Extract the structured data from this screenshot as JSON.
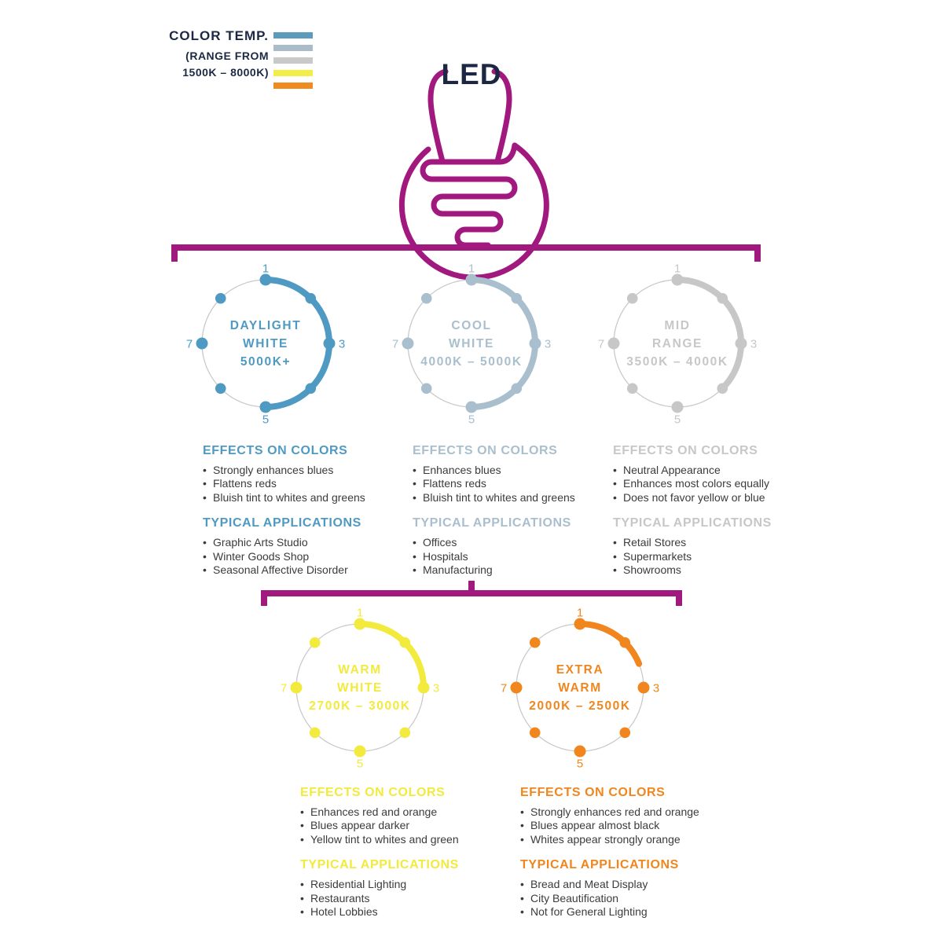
{
  "legend": {
    "title": "COLOR TEMP.",
    "subtitle1": "(RANGE FROM",
    "subtitle2": "1500K – 8000K)",
    "swatches": [
      {
        "name": "daylight-white",
        "color": "#5b9cbd"
      },
      {
        "name": "cool-white",
        "color": "#a9bcc7"
      },
      {
        "name": "mid-range",
        "color": "#c9c9c9"
      },
      {
        "name": "warm-white",
        "color": "#f2ee47"
      },
      {
        "name": "extra-warm",
        "color": "#ef8b20"
      }
    ]
  },
  "bulb": {
    "label": "LED",
    "outline_color": "#a1197e",
    "label_color": "#1c2843"
  },
  "dials": [
    {
      "name": "daylight-white",
      "label_lines": [
        "DAYLIGHT",
        "WHITE",
        "5000K+"
      ],
      "color": "#4f9ac2",
      "track_color": "#c9c9c9",
      "arc_sweep_deg": 180,
      "scale_labels": [
        "1",
        "3",
        "5",
        "7"
      ],
      "effects": {
        "heading": "EFFECTS ON COLORS",
        "items": [
          "Strongly enhances blues",
          "Flattens reds",
          "Bluish tint to whites and greens"
        ]
      },
      "applications": {
        "heading": "TYPICAL APPLICATIONS",
        "items": [
          "Graphic Arts Studio",
          "Winter Goods Shop",
          "Seasonal Affective Disorder"
        ]
      }
    },
    {
      "name": "cool-white",
      "label_lines": [
        "COOL",
        "WHITE",
        "4000K – 5000K"
      ],
      "color": "#a9bfcd",
      "track_color": "#c9c9c9",
      "arc_sweep_deg": 180,
      "scale_labels": [
        "1",
        "3",
        "5",
        "7"
      ],
      "effects": {
        "heading": "EFFECTS ON COLORS",
        "items": [
          "Enhances blues",
          "Flattens reds",
          "Bluish tint to whites and greens"
        ]
      },
      "applications": {
        "heading": "TYPICAL APPLICATIONS",
        "items": [
          "Offices",
          "Hospitals",
          "Manufacturing"
        ]
      }
    },
    {
      "name": "mid-range",
      "label_lines": [
        "MID",
        "RANGE",
        "3500K – 4000K"
      ],
      "color": "#c7c7c7",
      "track_color": "#c9c9c9",
      "arc_sweep_deg": 135,
      "scale_labels": [
        "1",
        "3",
        "5",
        "7"
      ],
      "effects": {
        "heading": "EFFECTS ON COLORS",
        "items": [
          "Neutral Appearance",
          "Enhances most colors equally",
          "Does not favor yellow or blue"
        ]
      },
      "applications": {
        "heading": "TYPICAL APPLICATIONS",
        "items": [
          "Retail Stores",
          "Supermarkets",
          "Showrooms"
        ]
      }
    },
    {
      "name": "warm-white",
      "label_lines": [
        "WARM",
        "WHITE",
        "2700K – 3000K"
      ],
      "color": "#f2ea3c",
      "track_color": "#c9c9c9",
      "arc_sweep_deg": 90,
      "scale_labels": [
        "1",
        "3",
        "5",
        "7"
      ],
      "effects": {
        "heading": "EFFECTS ON COLORS",
        "items": [
          "Enhances red and orange",
          "Blues appear darker",
          "Yellow tint to whites and green"
        ]
      },
      "applications": {
        "heading": "TYPICAL APPLICATIONS",
        "items": [
          "Residential Lighting",
          "Restaurants",
          "Hotel Lobbies"
        ]
      }
    },
    {
      "name": "extra-warm",
      "label_lines": [
        "EXTRA",
        "WARM",
        "2000K – 2500K"
      ],
      "color": "#f0861d",
      "track_color": "#c9c9c9",
      "arc_sweep_deg": 68,
      "scale_labels": [
        "1",
        "3",
        "5",
        "7"
      ],
      "effects": {
        "heading": "EFFECTS ON COLORS",
        "items": [
          "Strongly enhances red and orange",
          "Blues appear almost black",
          "Whites appear strongly orange"
        ]
      },
      "applications": {
        "heading": "TYPICAL APPLICATIONS",
        "items": [
          "Bread and Meat Display",
          "City Beautification",
          "Not for General Lighting"
        ]
      }
    }
  ]
}
